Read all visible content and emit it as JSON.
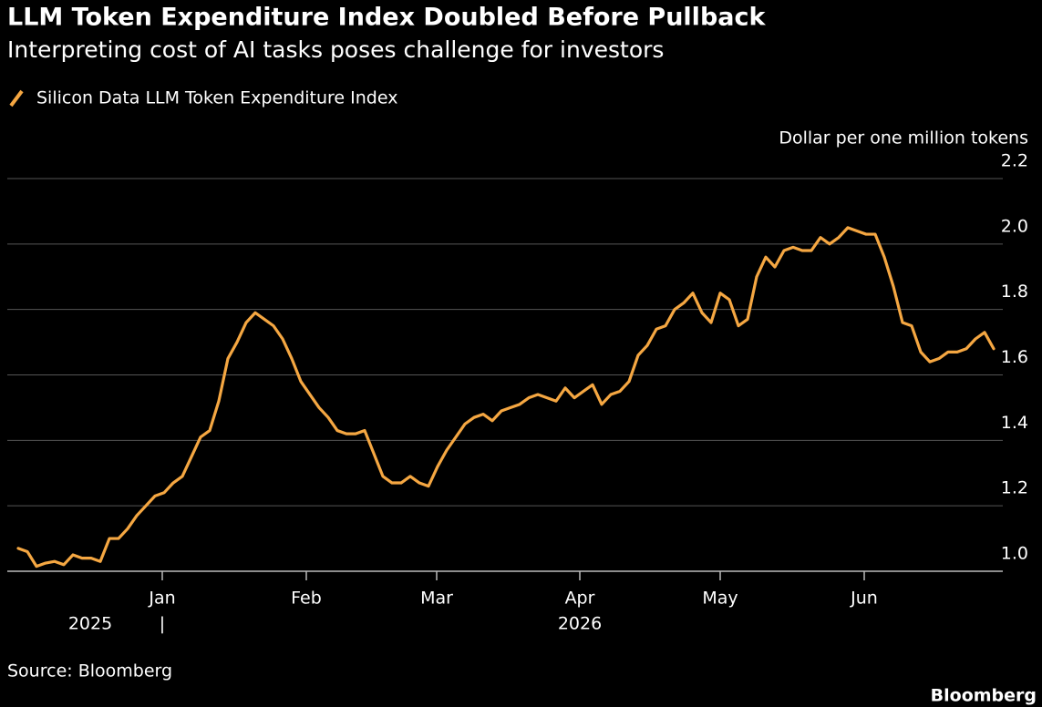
{
  "chart_data": {
    "type": "line",
    "title": "LLM Token Expenditure Index Doubled Before Pullback",
    "subtitle": "Interpreting cost of AI tasks poses challenge for investors",
    "y_axis_label": "Dollar per one million tokens",
    "source": "Source: Bloomberg",
    "brand": "Bloomberg",
    "years": [
      "2025",
      "2026"
    ],
    "series": [
      {
        "name": "Silicon Data LLM Token Expenditure Index",
        "color": "#f5a742",
        "values": [
          1.07,
          1.06,
          1.015,
          1.025,
          1.03,
          1.02,
          1.05,
          1.04,
          1.04,
          1.03,
          1.1,
          1.1,
          1.13,
          1.17,
          1.2,
          1.23,
          1.24,
          1.27,
          1.29,
          1.35,
          1.41,
          1.43,
          1.52,
          1.65,
          1.7,
          1.76,
          1.79,
          1.77,
          1.75,
          1.71,
          1.65,
          1.58,
          1.54,
          1.5,
          1.47,
          1.43,
          1.42,
          1.42,
          1.43,
          1.36,
          1.29,
          1.27,
          1.27,
          1.29,
          1.27,
          1.26,
          1.32,
          1.37,
          1.41,
          1.45,
          1.47,
          1.48,
          1.46,
          1.49,
          1.5,
          1.51,
          1.53,
          1.54,
          1.53,
          1.52,
          1.56,
          1.53,
          1.55,
          1.57,
          1.51,
          1.54,
          1.55,
          1.58,
          1.66,
          1.69,
          1.74,
          1.75,
          1.8,
          1.82,
          1.85,
          1.79,
          1.76,
          1.85,
          1.83,
          1.75,
          1.77,
          1.9,
          1.96,
          1.93,
          1.98,
          1.99,
          1.98,
          1.98,
          2.02,
          2.0,
          2.02,
          2.05,
          2.04,
          2.03,
          2.03,
          1.96,
          1.87,
          1.76,
          1.75,
          1.67,
          1.64,
          1.65,
          1.67,
          1.67,
          1.68,
          1.71,
          1.73,
          1.68
        ]
      }
    ],
    "xlim": [
      0,
      107
    ],
    "xticks": [
      {
        "value": 15.8,
        "label": "Jan"
      },
      {
        "value": 31.6,
        "label": "Feb"
      },
      {
        "value": 45.9,
        "label": "Mar"
      },
      {
        "value": 61.6,
        "label": "Apr"
      },
      {
        "value": 77,
        "label": "May"
      },
      {
        "value": 92.8,
        "label": "Jun"
      }
    ],
    "ylim": [
      1.0,
      2.2
    ],
    "yticks": [
      {
        "value": 1,
        "label": "1.0"
      },
      1.2,
      1.4,
      1.6,
      1.8,
      {
        "value": 2,
        "label": "2.0"
      },
      2.2
    ],
    "grid": true
  }
}
